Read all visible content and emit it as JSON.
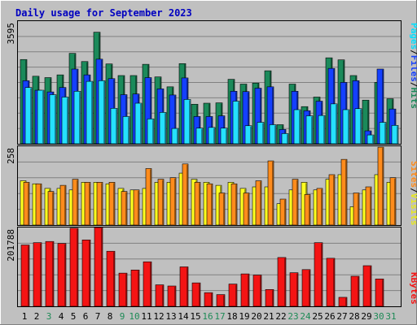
{
  "chart_data": [
    {
      "type": "bar",
      "title": "Daily usage for September 2023",
      "categories": [
        "1",
        "2",
        "3",
        "4",
        "5",
        "6",
        "7",
        "8",
        "9",
        "10",
        "11",
        "12",
        "13",
        "14",
        "15",
        "16",
        "17",
        "18",
        "19",
        "20",
        "21",
        "22",
        "23",
        "24",
        "25",
        "26",
        "27",
        "28",
        "29",
        "30",
        "31"
      ],
      "y_tick_label": "3595",
      "ylim": [
        0,
        3595
      ],
      "grid": true,
      "legend_position": "right",
      "legend": [
        "Pages",
        "Files",
        "Hits"
      ],
      "series": [
        {
          "name": "Hits",
          "color": "#1b8a5a",
          "values": [
            2470,
            1980,
            1940,
            2020,
            2650,
            2410,
            3270,
            2340,
            2000,
            2000,
            2330,
            1960,
            1670,
            2350,
            1160,
            1190,
            1200,
            1890,
            1750,
            1780,
            2140,
            560,
            1750,
            1090,
            1370,
            2520,
            2460,
            2000,
            1280,
            1800,
            1320
          ]
        },
        {
          "name": "Files",
          "color": "#1440ff",
          "values": [
            1850,
            1570,
            1520,
            1650,
            2190,
            2020,
            2480,
            1910,
            1440,
            1460,
            1940,
            1610,
            1430,
            1930,
            800,
            800,
            820,
            1540,
            1530,
            1630,
            1670,
            420,
            1540,
            970,
            1250,
            2210,
            1800,
            1850,
            380,
            2190,
            1020
          ]
        },
        {
          "name": "Pages",
          "color": "#25e0ff",
          "values": [
            1650,
            1570,
            1440,
            1370,
            1540,
            1830,
            1850,
            1040,
            800,
            1190,
            730,
            920,
            450,
            1300,
            460,
            480,
            460,
            1250,
            530,
            630,
            560,
            300,
            1000,
            820,
            830,
            1170,
            1000,
            1030,
            260,
            630,
            540
          ]
        }
      ]
    },
    {
      "type": "bar",
      "categories": [
        "1",
        "2",
        "3",
        "4",
        "5",
        "6",
        "7",
        "8",
        "9",
        "10",
        "11",
        "12",
        "13",
        "14",
        "15",
        "16",
        "17",
        "18",
        "19",
        "20",
        "21",
        "22",
        "23",
        "24",
        "25",
        "26",
        "27",
        "28",
        "29",
        "30",
        "31"
      ],
      "y_tick_label": "258",
      "ylim": [
        0,
        258
      ],
      "grid": true,
      "legend_position": "right",
      "legend": [
        "Sites",
        "Visits"
      ],
      "series": [
        {
          "name": "Visits",
          "color": "#ffff20",
          "values": [
            145,
            135,
            120,
            120,
            115,
            140,
            140,
            135,
            120,
            115,
            120,
            140,
            140,
            170,
            150,
            140,
            130,
            140,
            120,
            125,
            125,
            70,
            115,
            140,
            115,
            150,
            165,
            60,
            115,
            165,
            140
          ]
        },
        {
          "name": "Sites",
          "color": "#ff8c1c",
          "values": [
            140,
            135,
            110,
            130,
            150,
            140,
            140,
            140,
            110,
            115,
            185,
            150,
            155,
            200,
            140,
            135,
            105,
            135,
            105,
            145,
            210,
            85,
            150,
            100,
            120,
            165,
            215,
            105,
            125,
            255,
            155
          ]
        }
      ]
    },
    {
      "type": "bar",
      "categories": [
        "1",
        "2",
        "3",
        "4",
        "5",
        "6",
        "7",
        "8",
        "9",
        "10",
        "11",
        "12",
        "13",
        "14",
        "15",
        "16",
        "17",
        "18",
        "19",
        "20",
        "21",
        "22",
        "23",
        "24",
        "25",
        "26",
        "27",
        "28",
        "29",
        "30",
        "31"
      ],
      "y_tick_label": "201788",
      "ylim": [
        0,
        201788
      ],
      "grid": true,
      "legend_position": "right",
      "legend": [
        "KBytes"
      ],
      "series": [
        {
          "name": "KBytes",
          "color": "#f41414",
          "values": [
            157000,
            163000,
            166000,
            161000,
            200000,
            170000,
            201788,
            141000,
            85000,
            93000,
            114000,
            55000,
            52000,
            101000,
            60000,
            35000,
            30000,
            57000,
            83000,
            80000,
            43000,
            125000,
            86000,
            94000,
            163000,
            123000,
            23000,
            77000,
            104000,
            70000,
            0
          ]
        }
      ]
    }
  ],
  "day_label_colors": [
    "#000000",
    "#000000",
    "#1d8a56",
    "#000000",
    "#000000",
    "#000000",
    "#000000",
    "#000000",
    "#1d8a56",
    "#1d8a56",
    "#000000",
    "#000000",
    "#000000",
    "#000000",
    "#000000",
    "#1d8a56",
    "#1d8a56",
    "#000000",
    "#000000",
    "#000000",
    "#000000",
    "#000000",
    "#1d8a56",
    "#1d8a56",
    "#000000",
    "#000000",
    "#000000",
    "#000000",
    "#000000",
    "#1d8a56",
    "#1d8a56"
  ],
  "colors": {
    "title": "#0000c0",
    "plot_bg": "#c0c0c0",
    "grid": "#808080",
    "legend_sep": "#000000"
  }
}
